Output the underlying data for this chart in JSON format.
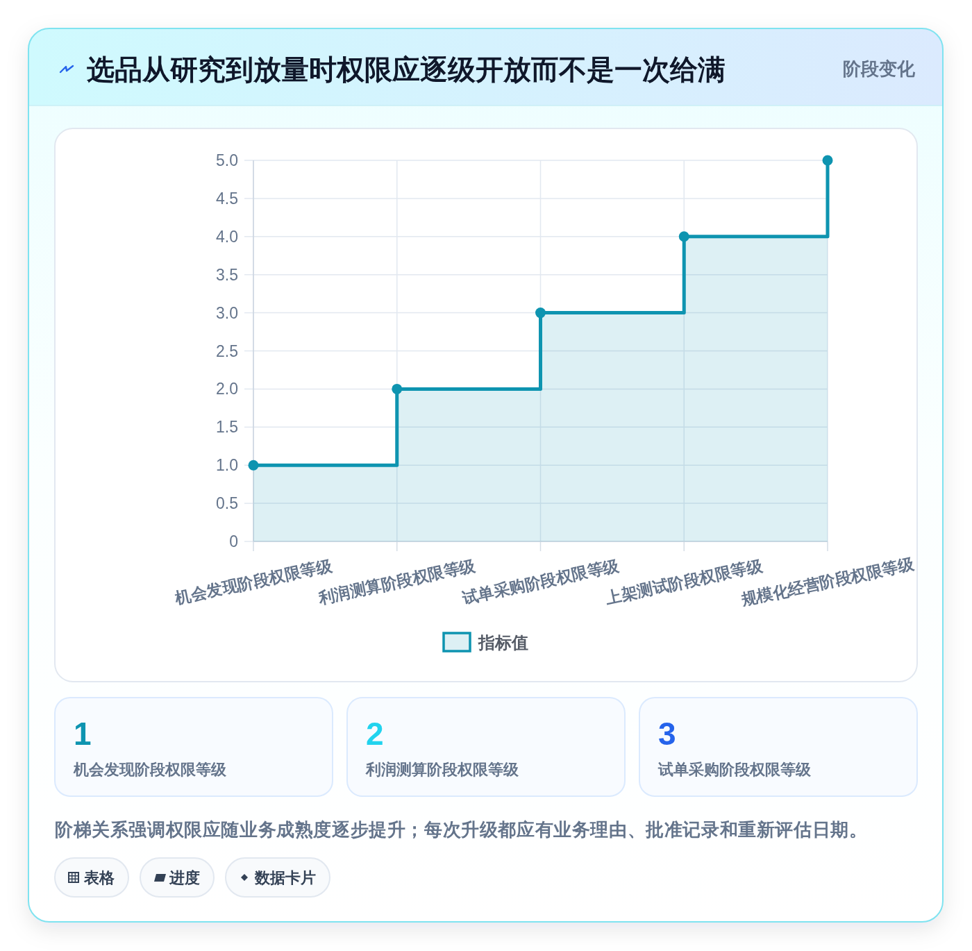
{
  "chart_data": [
    {
      "type": "step",
      "title": "选品从研究到放量时权限应逐级开放而不是一次给满",
      "subtitle": "阶段变化",
      "categories": [
        "机会发现阶段权限等级",
        "利润测算阶段权限等级",
        "试单采购阶段权限等级",
        "上架测试阶段权限等级",
        "规模化经营阶段权限等级"
      ],
      "series": [
        {
          "name": "指标值",
          "type": "area",
          "color": "#0e94b0",
          "values": [
            1,
            2,
            3,
            4,
            5
          ]
        }
      ],
      "ylim": [
        0,
        5
      ],
      "yticks": [
        0,
        0.5,
        {
          "value": 1,
          "label": "1.0"
        },
        1.5,
        {
          "value": 2,
          "label": "2.0"
        },
        2.5,
        {
          "value": 3,
          "label": "3.0"
        },
        3.5,
        {
          "value": 4,
          "label": "4.0"
        },
        4.5,
        {
          "value": 5,
          "label": "5.0"
        }
      ],
      "grid": true,
      "legend": "bottom",
      "marker": "circle",
      "line_style": "solid",
      "annotations": [
        "阶梯关系强调权限应随业务成熟度逐步提升；每次升级都应有业务理由、批准记录和重新评估日期。",
        "表格",
        "进度",
        "数据卡片"
      ]
    },
    {
      "type": "other",
      "categories": [
        "机会发现阶段权限等级",
        "利润测算阶段权限等级",
        "试单采购阶段权限等级"
      ],
      "values": [
        1,
        2,
        3
      ],
      "data_labels": true
    }
  ]
}
